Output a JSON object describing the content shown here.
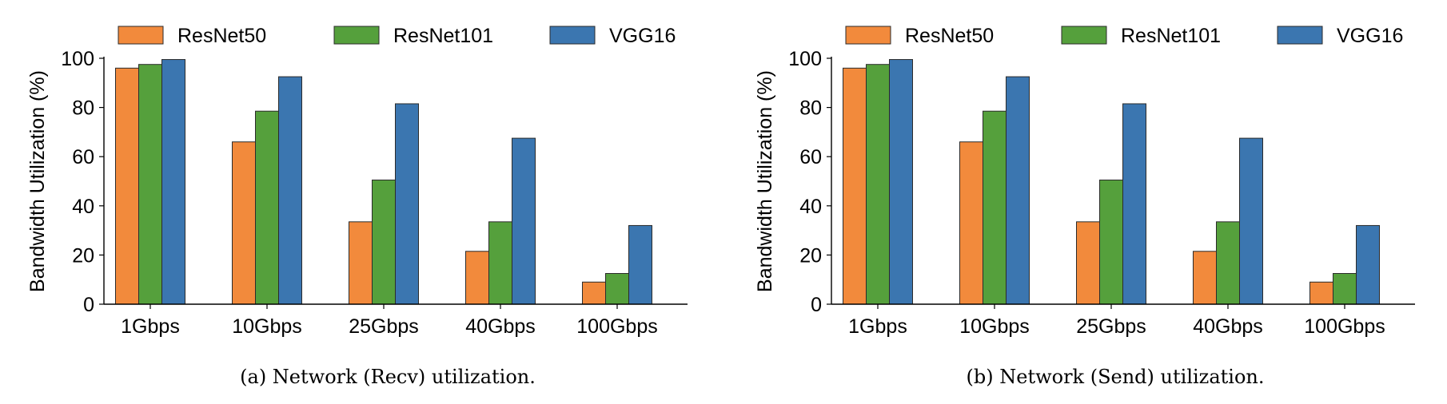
{
  "chart_data": [
    {
      "type": "bar",
      "caption": "(a)  Network (Recv) utilization.",
      "ylabel": "Bandwidth Utilization (%)",
      "xlabel": "",
      "ylim": [
        0,
        100
      ],
      "yticks": [
        0,
        20,
        40,
        60,
        80,
        100
      ],
      "categories": [
        "1Gbps",
        "10Gbps",
        "25Gbps",
        "40Gbps",
        "100Gbps"
      ],
      "legend_position": "top",
      "series": [
        {
          "name": "ResNet50",
          "color": "#f28a3c",
          "values": [
            96,
            66,
            33.5,
            21.5,
            9
          ]
        },
        {
          "name": "ResNet101",
          "color": "#55a03c",
          "values": [
            97.5,
            78.5,
            50.5,
            33.5,
            12.5
          ]
        },
        {
          "name": "VGG16",
          "color": "#3b76b0",
          "values": [
            99.5,
            92.5,
            81.5,
            67.5,
            32
          ]
        }
      ]
    },
    {
      "type": "bar",
      "caption": "(b)  Network (Send) utilization.",
      "ylabel": "Bandwidth Utilization (%)",
      "xlabel": "",
      "ylim": [
        0,
        100
      ],
      "yticks": [
        0,
        20,
        40,
        60,
        80,
        100
      ],
      "categories": [
        "1Gbps",
        "10Gbps",
        "25Gbps",
        "40Gbps",
        "100Gbps"
      ],
      "legend_position": "top",
      "series": [
        {
          "name": "ResNet50",
          "color": "#f28a3c",
          "values": [
            96,
            66,
            33.5,
            21.5,
            9
          ]
        },
        {
          "name": "ResNet101",
          "color": "#55a03c",
          "values": [
            97.5,
            78.5,
            50.5,
            33.5,
            12.5
          ]
        },
        {
          "name": "VGG16",
          "color": "#3b76b0",
          "values": [
            99.5,
            92.5,
            81.5,
            67.5,
            32
          ]
        }
      ]
    }
  ]
}
